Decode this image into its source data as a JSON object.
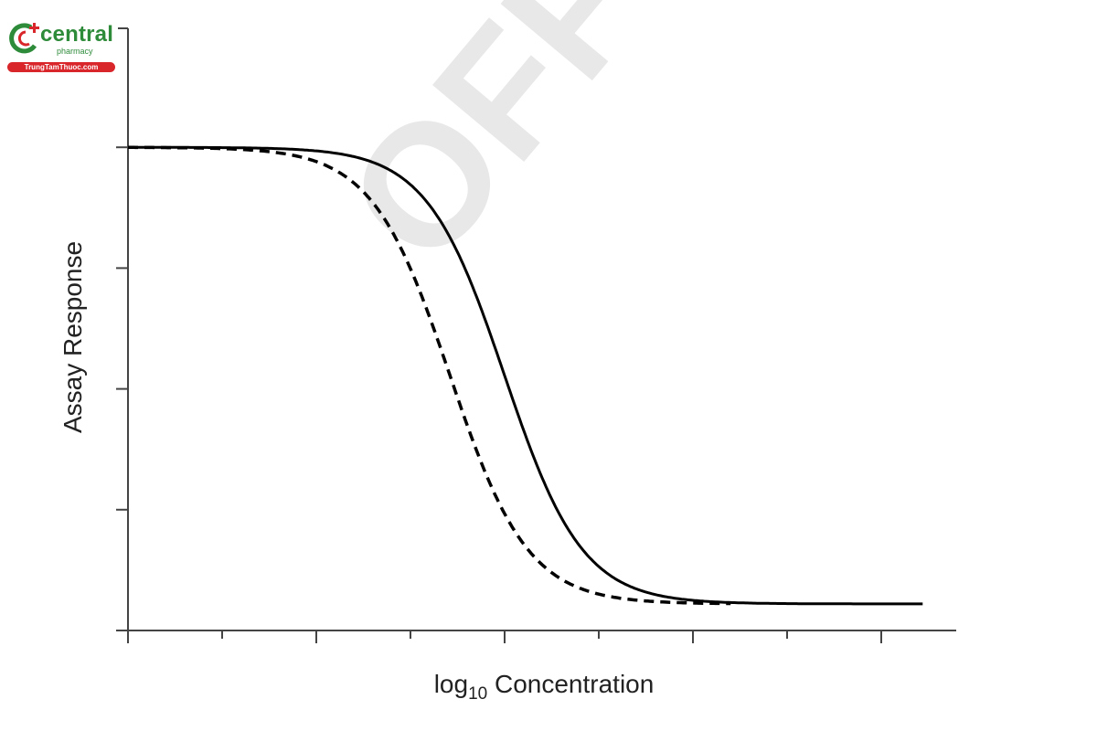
{
  "logo": {
    "brand": "central",
    "sub": "pharmacy",
    "pill": "TrungTamThuoc.com",
    "icon": "central-pharmacy-logo-icon",
    "colors": {
      "green": "#2e8b3a",
      "red": "#d9262b"
    }
  },
  "watermark": {
    "text": "OFF",
    "color": "#e8e8e8"
  },
  "chart_data": {
    "type": "line",
    "title": "",
    "xlabel": "log10 Concentration",
    "xlabel_parts": {
      "base": "log",
      "sub": "10",
      "rest": " Concentration"
    },
    "ylabel": "Assay Response",
    "x_ticks": [
      0,
      1,
      2,
      3,
      4,
      5,
      6,
      7,
      8
    ],
    "x_tick_labels": [],
    "y_ticks": [
      1,
      2,
      3,
      4
    ],
    "y_tick_labels": [],
    "xlim": [
      0,
      8.8
    ],
    "ylim": [
      0,
      5.0
    ],
    "grid": false,
    "legend": null,
    "series": [
      {
        "name": "solid curve",
        "style": "solid",
        "color": "#000000",
        "model": {
          "top": 4.0,
          "bottom": 0.22,
          "ic50": 4.0,
          "hill": 1.05,
          "x_start": 0,
          "x_end": 8.45
        },
        "x": [
          0,
          1,
          2,
          2.5,
          3,
          3.5,
          4,
          4.5,
          5,
          5.5,
          6,
          7,
          8,
          8.45
        ],
        "values": [
          4.0,
          4.0,
          3.99,
          3.92,
          3.63,
          3.06,
          2.11,
          1.16,
          0.58,
          0.33,
          0.25,
          0.22,
          0.22,
          0.22
        ]
      },
      {
        "name": "dashed curve",
        "style": "dashed",
        "color": "#000000",
        "model": {
          "top": 4.0,
          "bottom": 0.22,
          "ic50": 3.42,
          "hill": 1.05,
          "x_start": 0,
          "x_end": 6.4
        },
        "x": [
          0,
          1,
          2,
          2.5,
          3,
          3.42,
          4,
          4.5,
          5,
          5.5,
          6,
          6.4
        ],
        "values": [
          4.0,
          3.99,
          3.88,
          3.67,
          3.19,
          2.11,
          0.86,
          0.42,
          0.27,
          0.23,
          0.22,
          0.22
        ]
      }
    ]
  }
}
